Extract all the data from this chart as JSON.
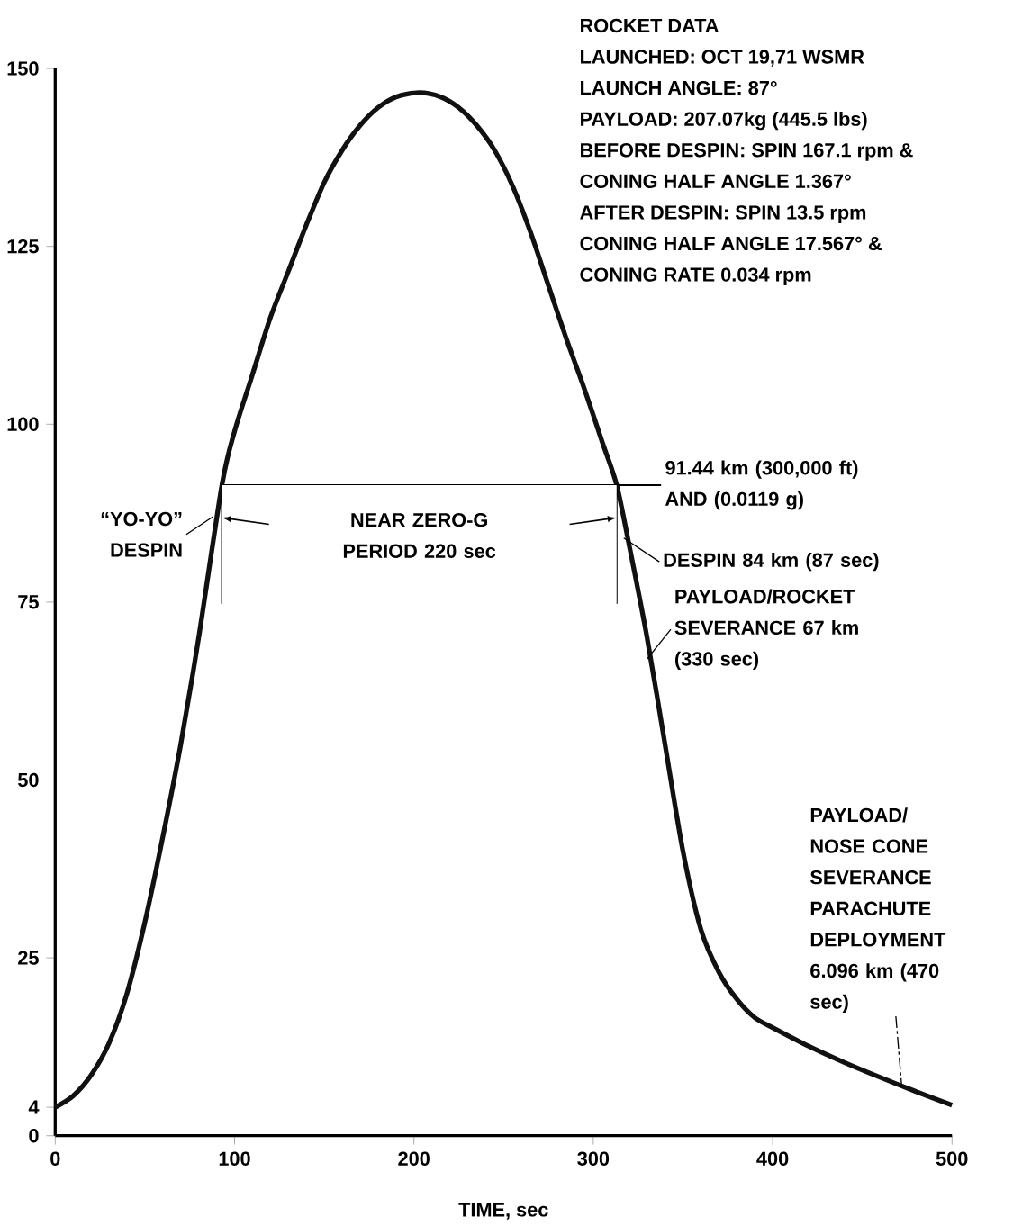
{
  "chart_data": {
    "type": "line",
    "xlabel": "TIME, sec",
    "x": [
      0,
      10,
      20,
      30,
      40,
      50,
      60,
      70,
      80,
      93,
      100,
      110,
      120,
      130,
      140,
      150,
      160,
      170,
      180,
      190,
      203,
      215,
      225,
      235,
      245,
      255,
      265,
      275,
      285,
      295,
      305,
      313,
      320,
      330,
      340,
      350,
      360,
      370,
      380,
      390,
      400,
      420,
      440,
      460,
      480,
      500
    ],
    "series": [
      {
        "color": "#111111",
        "values": [
          4,
          5.6,
          8.5,
          13,
          20,
          30,
          42,
          55,
          70,
          91.5,
          99,
          107,
          115,
          121.5,
          128,
          134,
          138.5,
          142,
          144.5,
          146,
          146.6,
          146,
          144.5,
          142,
          138.5,
          133.5,
          127,
          119.5,
          112,
          105,
          97.5,
          91.5,
          83,
          70,
          55,
          40,
          29,
          23,
          19.2,
          16.6,
          15.2,
          12.6,
          10.3,
          8.2,
          6.2,
          4.3
        ]
      }
    ],
    "xlim": [
      0,
      500
    ],
    "ylim": [
      0,
      150
    ],
    "xticks": [
      0,
      100,
      200,
      300,
      400,
      500
    ],
    "yticks": [
      0,
      4,
      25,
      50,
      75,
      100,
      125,
      150
    ],
    "grid": false,
    "marker": "none",
    "line_style": "solid",
    "ref_lines": [
      {
        "axis": "y",
        "value": 91.44,
        "label": "91.44 km (300,000 ft) AND (0.0119 g)"
      },
      {
        "axis": "x",
        "value": 93
      },
      {
        "axis": "x",
        "value": 313
      }
    ],
    "bands": [
      {
        "axis": "x",
        "from": 93,
        "to": 313,
        "color": "#ffffff",
        "label": "NEAR ZERO-G PERIOD 220 sec"
      }
    ],
    "annotations": [
      "ROCKET DATA",
      "LAUNCHED: OCT 19,71 WSMR",
      "LAUNCH ANGLE: 87°",
      "PAYLOAD: 207.07kg (445.5 lbs)",
      "BEFORE DESPIN: SPIN 167.1 rpm &",
      "CONING HALF ANGLE 1.367°",
      "AFTER DESPIN: SPIN 13.5 rpm",
      "CONING HALF ANGLE 17.567° &",
      "CONING RATE 0.034 rpm",
      {
        "text": "“YO-YO” DESPIN",
        "x": 88,
        "y": 87
      },
      {
        "text": "DESPIN 84 km (87 sec)",
        "x": 317,
        "y": 84
      },
      {
        "text": "PAYLOAD/ROCKET SEVERANCE 67 km (330 sec)",
        "x": 330,
        "y": 67
      },
      {
        "text": "PAYLOAD/ NOSE CONE SEVERANCE PARACHUTE DEPLOYMENT 6.096 km (470 sec)",
        "x": 472,
        "y": 6.8
      }
    ]
  }
}
